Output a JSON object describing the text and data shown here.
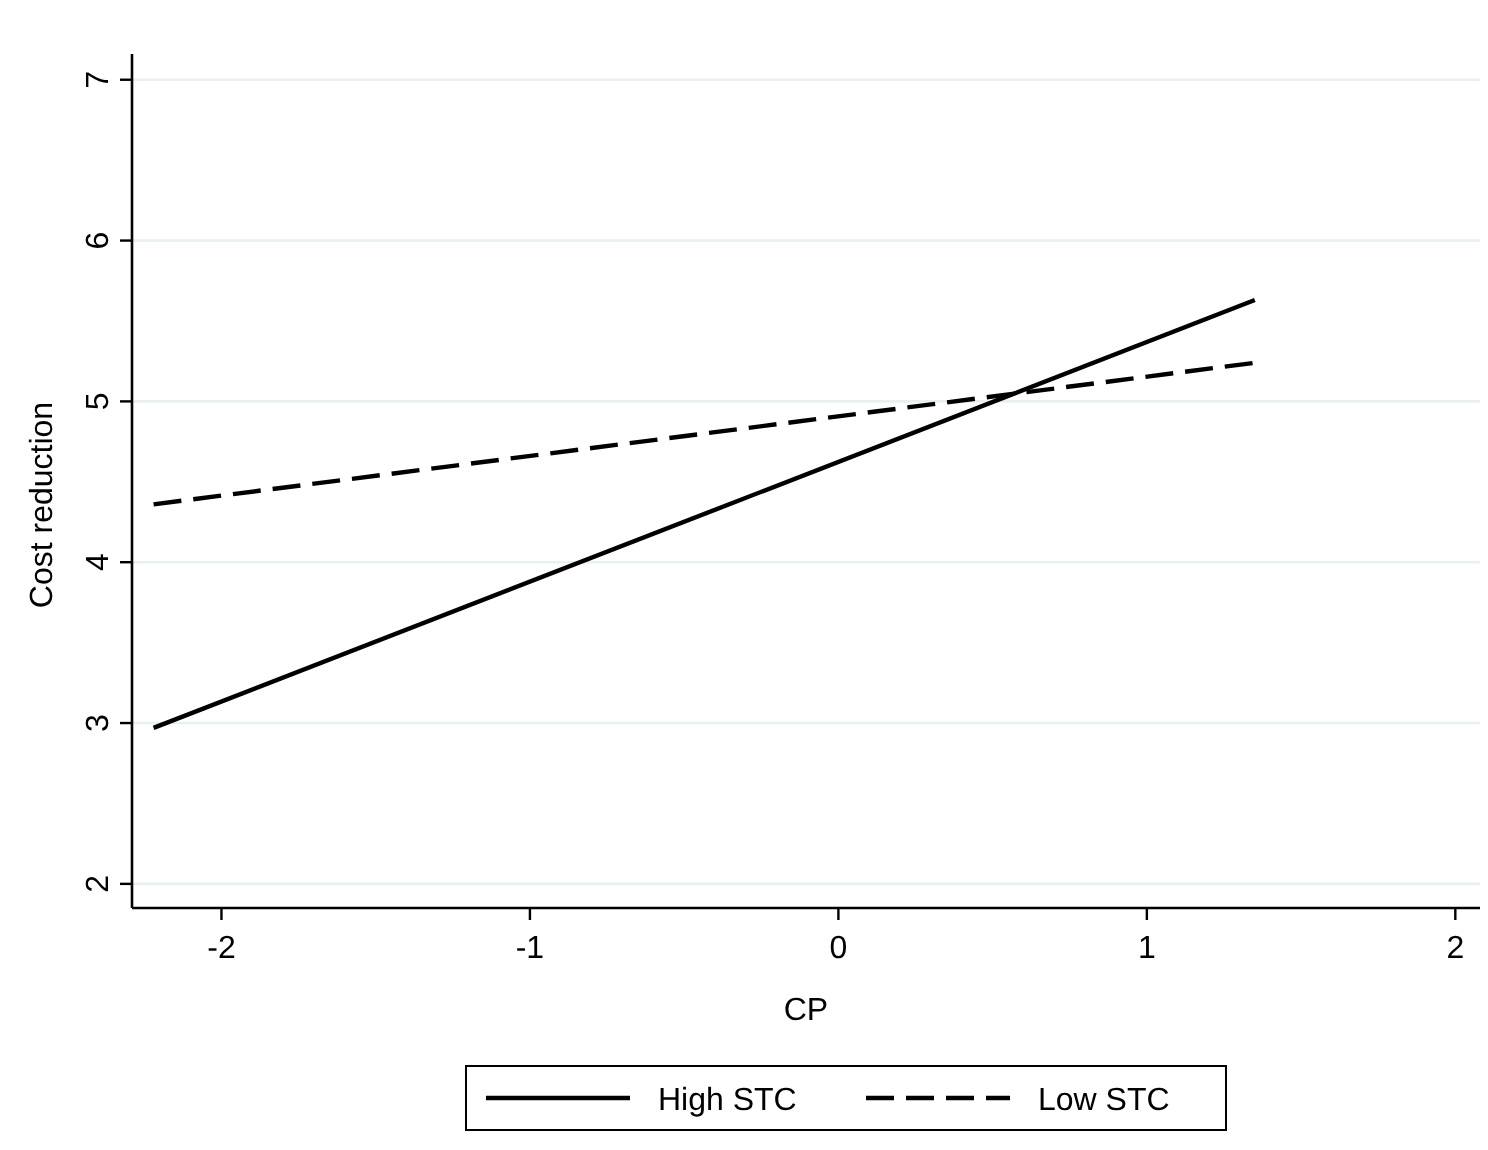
{
  "chart_data": {
    "type": "line",
    "xlabel": "CP",
    "ylabel": "Cost reduction",
    "xlim": [
      -2.29,
      2.08
    ],
    "xticks": [
      -2,
      -1,
      0,
      1,
      2
    ],
    "ylim": [
      1.85,
      7.16
    ],
    "yticks": [
      2,
      3,
      4,
      5,
      6,
      7
    ],
    "grid": "y",
    "legend": "bottom",
    "x": [
      -2.22,
      1.35
    ],
    "series": [
      {
        "name": "High STC",
        "color": "#000000",
        "line_style": "solid",
        "values": [
          2.97,
          5.63
        ]
      },
      {
        "name": "Low STC",
        "color": "#000000",
        "line_style": "dashed",
        "values": [
          4.36,
          5.24
        ]
      }
    ]
  }
}
